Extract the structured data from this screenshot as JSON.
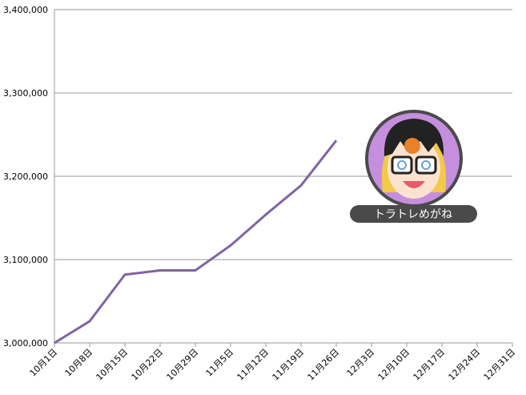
{
  "chart_data": {
    "type": "line",
    "categories": [
      "10月1日",
      "10月8日",
      "10月15日",
      "10月22日",
      "10月29日",
      "11月5日",
      "11月12日",
      "11月19日",
      "11月26日",
      "12月3日",
      "12月10日",
      "12月17日",
      "12月24日",
      "12月31日"
    ],
    "series": [
      {
        "color": "#8064a2",
        "values": [
          3000000,
          3026000,
          3082000,
          3087000,
          3087000,
          3117000,
          3154000,
          3189000,
          3243000,
          null,
          null,
          null,
          null,
          null
        ]
      }
    ],
    "ylim": [
      3000000,
      3400000
    ],
    "yticks": [
      {
        "value": 3000000,
        "label": "3,000,000"
      },
      {
        "value": 3100000,
        "label": "3,100,000"
      },
      {
        "value": 3200000,
        "label": "3,200,000"
      },
      {
        "value": 3300000,
        "label": "3,300,000"
      },
      {
        "value": 3400000,
        "label": "3,400,000"
      }
    ],
    "grid": true,
    "badge_text": "トラトレめがね"
  }
}
